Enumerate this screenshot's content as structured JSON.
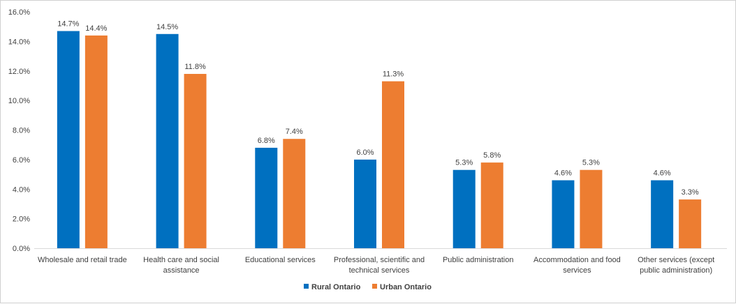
{
  "chart_data": {
    "type": "bar",
    "title": "",
    "xlabel": "",
    "ylabel": "",
    "ylim": [
      0,
      16
    ],
    "y_ticks": [
      "0.0%",
      "2.0%",
      "4.0%",
      "6.0%",
      "8.0%",
      "10.0%",
      "12.0%",
      "14.0%",
      "16.0%"
    ],
    "grid": false,
    "legend_position": "bottom",
    "categories": [
      [
        "Wholesale and retail trade"
      ],
      [
        "Health care and social",
        "assistance"
      ],
      [
        "Educational services"
      ],
      [
        "Professional, scientific and",
        "technical services"
      ],
      [
        "Public administration"
      ],
      [
        "Accommodation and food",
        "services"
      ],
      [
        "Other services (except",
        "public administration)"
      ]
    ],
    "series": [
      {
        "name": "Rural Ontario",
        "color": "#0070c0",
        "values": [
          14.7,
          14.5,
          6.8,
          6.0,
          5.3,
          4.6,
          4.6
        ],
        "labels": [
          "14.7%",
          "14.5%",
          "6.8%",
          "6.0%",
          "5.3%",
          "4.6%",
          "4.6%"
        ]
      },
      {
        "name": "Urban Ontario",
        "color": "#ed7d31",
        "values": [
          14.4,
          11.8,
          7.4,
          11.3,
          5.8,
          5.3,
          3.3
        ],
        "labels": [
          "14.4%",
          "11.8%",
          "7.4%",
          "11.3%",
          "5.8%",
          "5.3%",
          "3.3%"
        ]
      }
    ]
  }
}
